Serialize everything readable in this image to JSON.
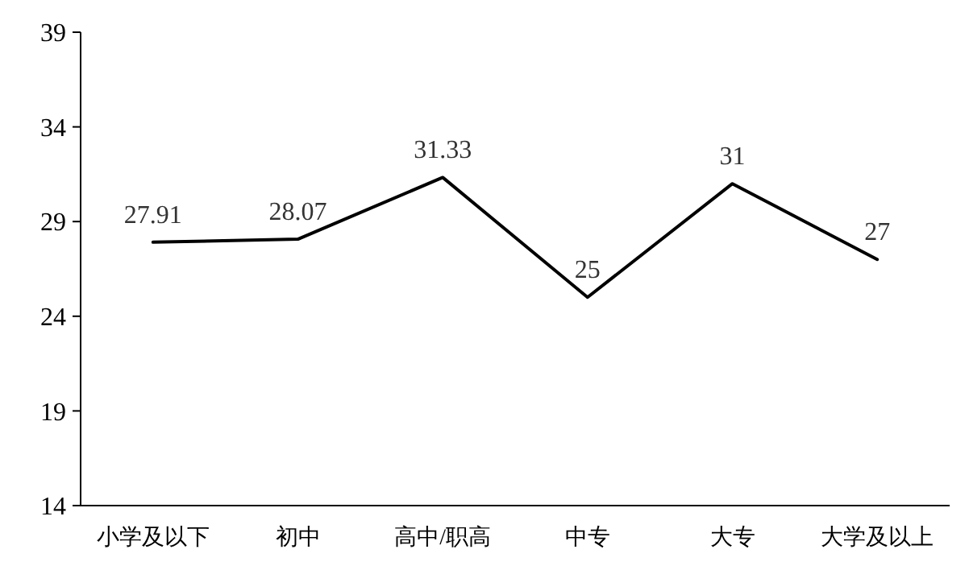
{
  "chart_data": {
    "type": "line",
    "categories": [
      "小学及以下",
      "初中",
      "高中/职高",
      "中专",
      "大专",
      "大学及以上"
    ],
    "series": [
      {
        "color": "#000000",
        "values": [
          27.91,
          28.07,
          31.33,
          25,
          31,
          27
        ]
      }
    ],
    "ylim": [
      14,
      39
    ],
    "yticks": [
      14,
      19,
      24,
      29,
      34,
      39
    ],
    "grid": false,
    "marker": "none",
    "line_style": "solid",
    "data_labels": true
  }
}
